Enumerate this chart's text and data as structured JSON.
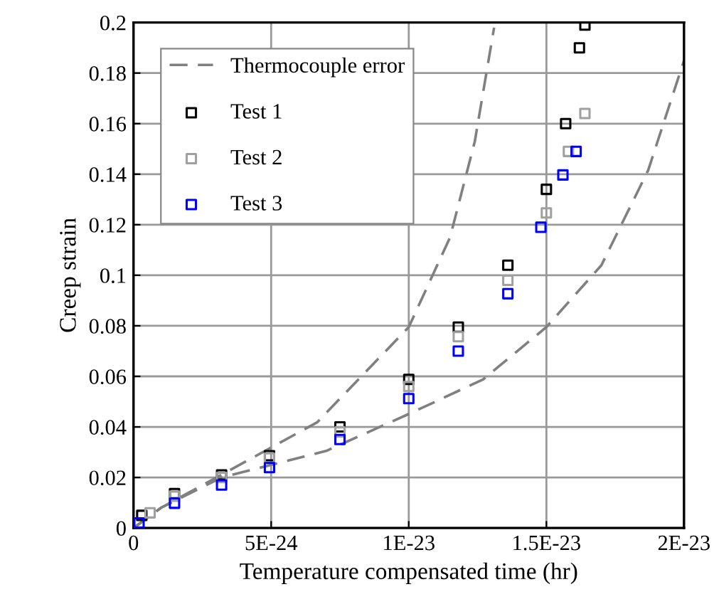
{
  "chart_data": {
    "type": "scatter",
    "xlabel": "Temperature compensated time (hr)",
    "ylabel": "Creep strain",
    "xlim": [
      0,
      2e-23
    ],
    "xticks": [
      0,
      {
        "value": 5e-24,
        "label": "5E-24"
      },
      {
        "value": 1e-23,
        "label": "1E-23"
      },
      {
        "value": 1.5e-23,
        "label": "1.5E-23"
      },
      {
        "value": 2e-23,
        "label": "2E-23"
      }
    ],
    "ylim": [
      0,
      0.2
    ],
    "yticks": [
      0,
      0.02,
      0.04,
      0.06,
      0.08,
      0.1,
      0.12,
      0.14,
      0.16,
      0.18,
      0.2
    ],
    "grid": true,
    "legend": "top left",
    "series": [
      {
        "name": "Thermocouple error",
        "type": "line",
        "line_style": "dashed",
        "marker": "none",
        "color": "#808080",
        "x": [
          0,
          1e-24,
          3.2e-24,
          6.67e-24,
          1e-23,
          1.15e-23,
          1.24e-23,
          1.31e-23
        ],
        "values": [
          0,
          0.008,
          0.0211,
          0.0418,
          0.0795,
          0.115,
          0.153,
          0.198
        ]
      },
      {
        "type": "line",
        "line_style": "dashed",
        "marker": "none",
        "color": "#808080",
        "x": [
          0,
          1e-24,
          3.2e-24,
          7e-24,
          1.01e-23,
          1.27e-23,
          1.5e-23,
          1.7e-23,
          1.87e-23,
          2e-23
        ],
        "values": [
          0,
          0.008,
          0.02,
          0.0305,
          0.0456,
          0.0588,
          0.0795,
          0.104,
          0.1416,
          0.185
        ]
      },
      {
        "name": "Test 1",
        "marker": "square",
        "color": "#000000",
        "x": [
          3e-25,
          1.49e-24,
          3.2e-24,
          4.94e-24,
          7.5e-24,
          1e-23,
          1.18e-23,
          1.36e-23,
          1.5e-23,
          1.57e-23,
          1.62e-23,
          1.64e-23
        ],
        "values": [
          0.005,
          0.0136,
          0.021,
          0.0286,
          0.04,
          0.0588,
          0.0795,
          0.104,
          0.134,
          0.16,
          0.19,
          0.199
        ]
      },
      {
        "name": "Test 2",
        "marker": "square",
        "color": "#a0a0a0",
        "x": [
          6e-25,
          1.49e-24,
          3.2e-24,
          4.94e-24,
          7.5e-24,
          1e-23,
          1.18e-23,
          1.36e-23,
          1.5e-23,
          1.58e-23,
          1.64e-23
        ],
        "values": [
          0.006,
          0.0126,
          0.02,
          0.0277,
          0.038,
          0.056,
          0.0757,
          0.098,
          0.1247,
          0.149,
          0.164
        ]
      },
      {
        "name": "Test 3",
        "marker": "square",
        "color": "#0000ff",
        "x": [
          2e-25,
          1.49e-24,
          3.2e-24,
          4.94e-24,
          7.5e-24,
          1e-23,
          1.18e-23,
          1.36e-23,
          1.48e-23,
          1.56e-23,
          1.608e-23
        ],
        "values": [
          0.002,
          0.0098,
          0.017,
          0.0239,
          0.035,
          0.0512,
          0.07,
          0.0927,
          0.119,
          0.1397,
          0.149
        ]
      }
    ]
  }
}
